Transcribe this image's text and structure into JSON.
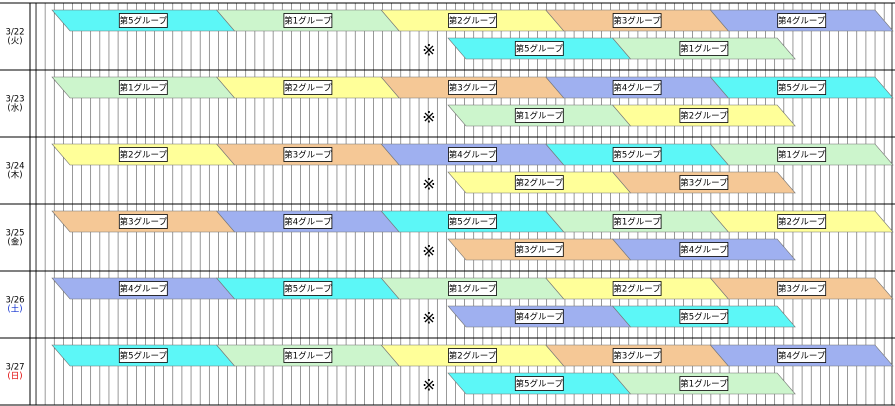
{
  "colors": {
    "第1グループ": "#ccf5cc",
    "第2グループ": "#ffff99",
    "第3グループ": "#f5c896",
    "第4グループ": "#9fb0f0",
    "第5グループ": "#5cf7f7"
  },
  "rows": [
    {
      "date": "3/22",
      "weekday": "(火)",
      "top": [
        "第5グループ",
        "第1グループ",
        "第2グループ",
        "第3グループ",
        "第4グループ"
      ],
      "mark": "※",
      "bottom": [
        "第5グループ",
        "第1グループ"
      ]
    },
    {
      "date": "3/23",
      "weekday": "(水)",
      "top": [
        "第1グループ",
        "第2グループ",
        "第3グループ",
        "第4グループ",
        "第5グループ"
      ],
      "mark": "※",
      "bottom": [
        "第1グループ",
        "第2グループ"
      ]
    },
    {
      "date": "3/24",
      "weekday": "(木)",
      "top": [
        "第2グループ",
        "第3グループ",
        "第4グループ",
        "第5グループ",
        "第1グループ"
      ],
      "mark": "※",
      "bottom": [
        "第2グループ",
        "第3グループ"
      ]
    },
    {
      "date": "3/25",
      "weekday": "(金)",
      "top": [
        "第3グループ",
        "第4グループ",
        "第5グループ",
        "第1グループ",
        "第2グループ"
      ],
      "mark": "※",
      "bottom": [
        "第3グループ",
        "第4グループ"
      ]
    },
    {
      "date": "3/26",
      "weekday": "(土)",
      "top": [
        "第4グループ",
        "第5グループ",
        "第1グループ",
        "第2グループ",
        "第3グループ"
      ],
      "mark": "※",
      "bottom": [
        "第4グループ",
        "第5グループ"
      ]
    },
    {
      "date": "3/27",
      "weekday": "(日)",
      "top": [
        "第5グループ",
        "第1グループ",
        "第2グループ",
        "第3グループ",
        "第4グループ"
      ],
      "mark": "※",
      "bottom": [
        "第5グループ",
        "第1グループ"
      ]
    }
  ]
}
